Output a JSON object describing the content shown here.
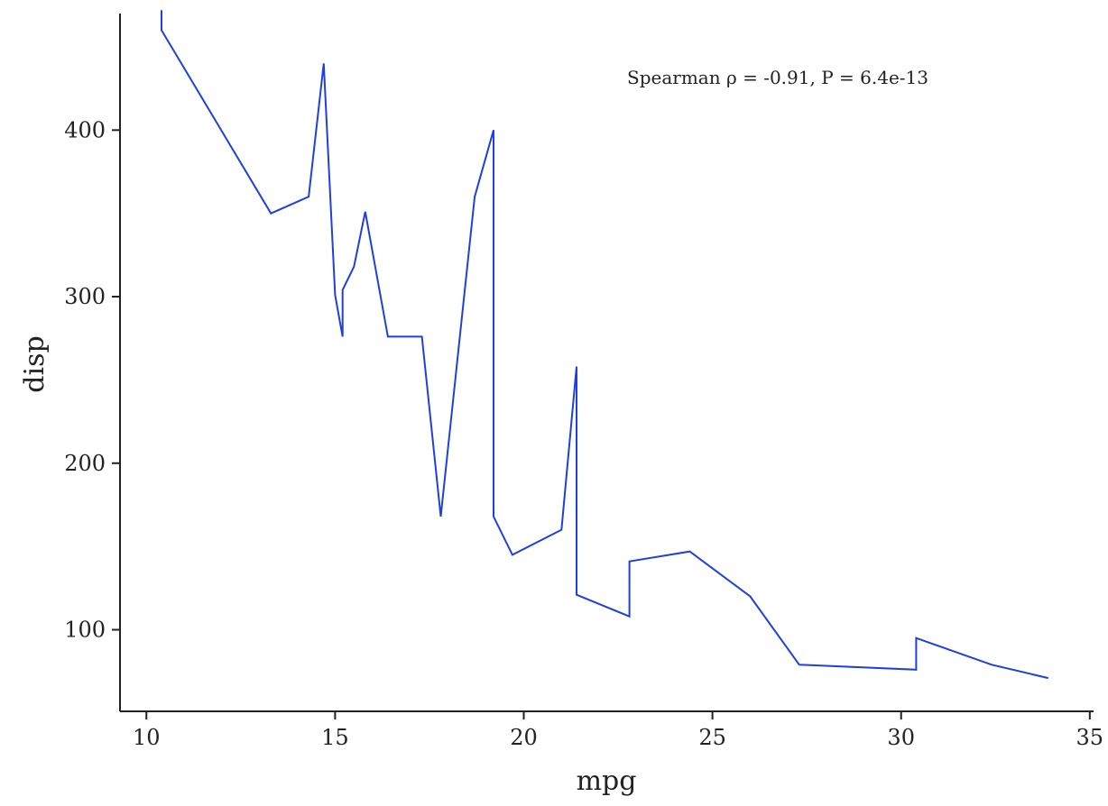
{
  "chart_data": {
    "type": "line",
    "title": "",
    "xlabel": "mpg",
    "ylabel": "disp",
    "annotation": "Spearman ρ = -0.91, P = 6.4e-13",
    "xlim": [
      9.3,
      35.1
    ],
    "ylim": [
      51,
      470
    ],
    "xticks": [
      10,
      15,
      20,
      25,
      30,
      35
    ],
    "yticks": [
      100,
      200,
      300,
      400
    ],
    "grid": false,
    "line_color": "#1f3fe0",
    "series": [
      {
        "x": [
          10.4,
          10.4,
          13.3,
          14.3,
          14.7,
          15.0,
          15.2,
          15.2,
          15.5,
          15.8,
          16.4,
          17.3,
          17.8,
          18.7,
          19.2,
          19.2,
          19.7,
          21.0,
          21.4,
          21.4,
          22.8,
          22.8,
          24.4,
          26.0,
          27.3,
          30.4,
          30.4,
          32.4,
          33.9
        ],
        "y": [
          472,
          460,
          350,
          360,
          440,
          301,
          276,
          304,
          318,
          351,
          276,
          276,
          168,
          360,
          400,
          168,
          145,
          160,
          258,
          121,
          108,
          141,
          147,
          120,
          79,
          76,
          95,
          79,
          71
        ]
      }
    ]
  }
}
